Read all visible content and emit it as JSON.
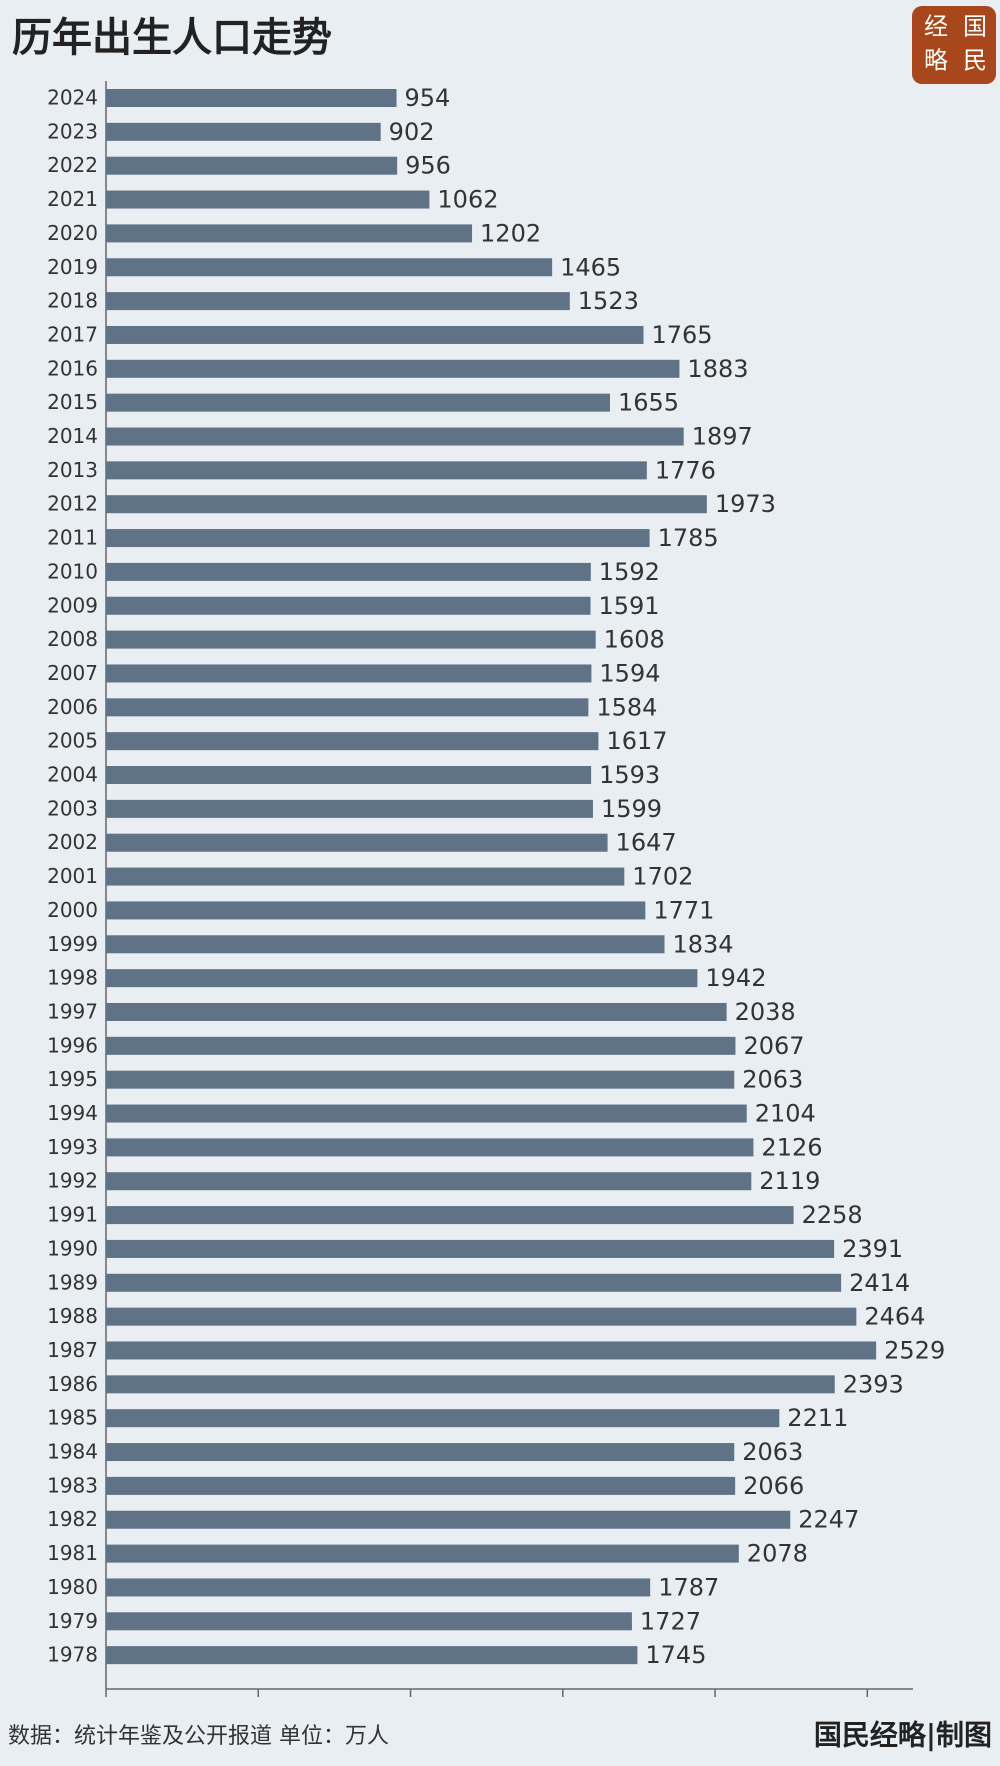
{
  "chart_data": {
    "type": "hbar",
    "title": "历年出生人口走势",
    "categories": [
      "2024",
      "2023",
      "2022",
      "2021",
      "2020",
      "2019",
      "2018",
      "2017",
      "2016",
      "2015",
      "2014",
      "2013",
      "2012",
      "2011",
      "2010",
      "2009",
      "2008",
      "2007",
      "2006",
      "2005",
      "2004",
      "2003",
      "2002",
      "2001",
      "2000",
      "1999",
      "1998",
      "1997",
      "1996",
      "1995",
      "1994",
      "1993",
      "1992",
      "1991",
      "1990",
      "1989",
      "1988",
      "1987",
      "1986",
      "1985",
      "1984",
      "1983",
      "1982",
      "1981",
      "1980",
      "1979",
      "1978"
    ],
    "values": [
      954,
      902,
      956,
      1062,
      1202,
      1465,
      1523,
      1765,
      1883,
      1655,
      1897,
      1776,
      1973,
      1785,
      1592,
      1591,
      1608,
      1594,
      1584,
      1617,
      1593,
      1599,
      1647,
      1702,
      1771,
      1834,
      1942,
      2038,
      2067,
      2063,
      2104,
      2126,
      2119,
      2258,
      2391,
      2414,
      2464,
      2529,
      2393,
      2211,
      2063,
      2066,
      2247,
      2078,
      1787,
      1727,
      1745
    ],
    "color": "#5f7286",
    "xlim": [
      0,
      2650
    ],
    "xticks": [
      0,
      500,
      1000,
      1500,
      2000,
      2500
    ],
    "source": "数据：统计年鉴及公开报道 单位：万人",
    "credit": "国民经略|制图",
    "logo": [
      "国",
      "民",
      "经",
      "略"
    ]
  }
}
